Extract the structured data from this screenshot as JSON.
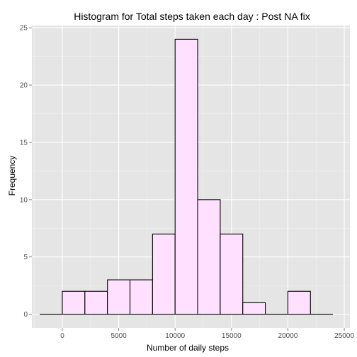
{
  "chart_data": {
    "type": "bar",
    "title": "Histogram for Total steps taken each day : Post NA fix",
    "xlabel": "Number of daily steps",
    "ylabel": "Frequency",
    "xlim": [
      -2700,
      25500
    ],
    "ylim": [
      -1.2,
      25.2
    ],
    "x_ticks": [
      0,
      5000,
      10000,
      15000,
      20000,
      25000
    ],
    "y_ticks": [
      0,
      5,
      10,
      15,
      20,
      25
    ],
    "bin_edges": [
      -2000,
      0,
      2000,
      4000,
      6000,
      8000,
      10000,
      12000,
      14000,
      16000,
      18000,
      20000,
      22000,
      24000
    ],
    "values": [
      0,
      2,
      2,
      3,
      3,
      7,
      24,
      10,
      7,
      1,
      0,
      2,
      0
    ],
    "colors": {
      "panel_background": "#e5e5e5",
      "major_grid": "#ffffff",
      "minor_grid": "#f2f2f2",
      "bar_fill": "#ffe0ff",
      "bar_outline": "#000000",
      "tick_label": "#4d4d4d",
      "tick_mark": "#7f7f7f"
    },
    "grid": true,
    "legend": "none"
  }
}
